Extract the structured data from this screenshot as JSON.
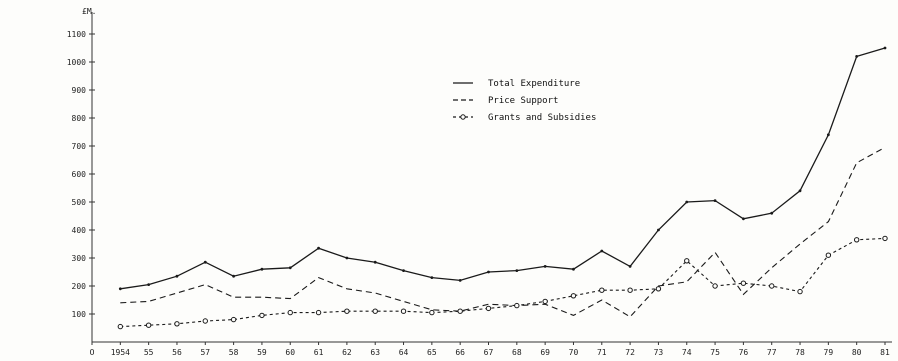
{
  "chart_data": {
    "type": "line",
    "ylabel": "£M.",
    "x_ticks": [
      "O",
      "1954",
      "55",
      "56",
      "57",
      "58",
      "59",
      "60",
      "61",
      "62",
      "63",
      "64",
      "65",
      "66",
      "67",
      "68",
      "69",
      "70",
      "71",
      "72",
      "73",
      "74",
      "75",
      "76",
      "77",
      "78",
      "79",
      "80",
      "81"
    ],
    "y_ticks": [
      "100",
      "200",
      "300",
      "400",
      "500",
      "600",
      "700",
      "800",
      "900",
      "1000",
      "1100"
    ],
    "ylim": [
      0,
      1150
    ],
    "xlim": [
      1953,
      1981
    ],
    "legend_position": "top-center",
    "x": [
      1954,
      1955,
      1956,
      1957,
      1958,
      1959,
      1960,
      1961,
      1962,
      1963,
      1964,
      1965,
      1966,
      1967,
      1968,
      1969,
      1970,
      1971,
      1972,
      1973,
      1974,
      1975,
      1976,
      1977,
      1978,
      1979,
      1980,
      1981
    ],
    "series": [
      {
        "name": "Total Expenditure",
        "style": "solid",
        "values": [
          190,
          205,
          235,
          285,
          235,
          260,
          265,
          335,
          300,
          285,
          255,
          230,
          220,
          250,
          255,
          270,
          260,
          325,
          270,
          400,
          500,
          505,
          440,
          460,
          540,
          740,
          1020,
          1050
        ]
      },
      {
        "name": "Price Support",
        "style": "dashed",
        "values": [
          140,
          145,
          175,
          205,
          160,
          160,
          155,
          230,
          190,
          175,
          145,
          115,
          110,
          135,
          130,
          135,
          95,
          150,
          90,
          200,
          215,
          320,
          170,
          265,
          350,
          430,
          640,
          695
        ]
      },
      {
        "name": "Grants and Subsidies",
        "style": "dash-circle",
        "values": [
          55,
          60,
          65,
          75,
          80,
          95,
          105,
          105,
          110,
          110,
          110,
          105,
          110,
          120,
          130,
          145,
          165,
          185,
          185,
          190,
          290,
          200,
          210,
          200,
          180,
          310,
          365,
          370
        ]
      }
    ]
  }
}
